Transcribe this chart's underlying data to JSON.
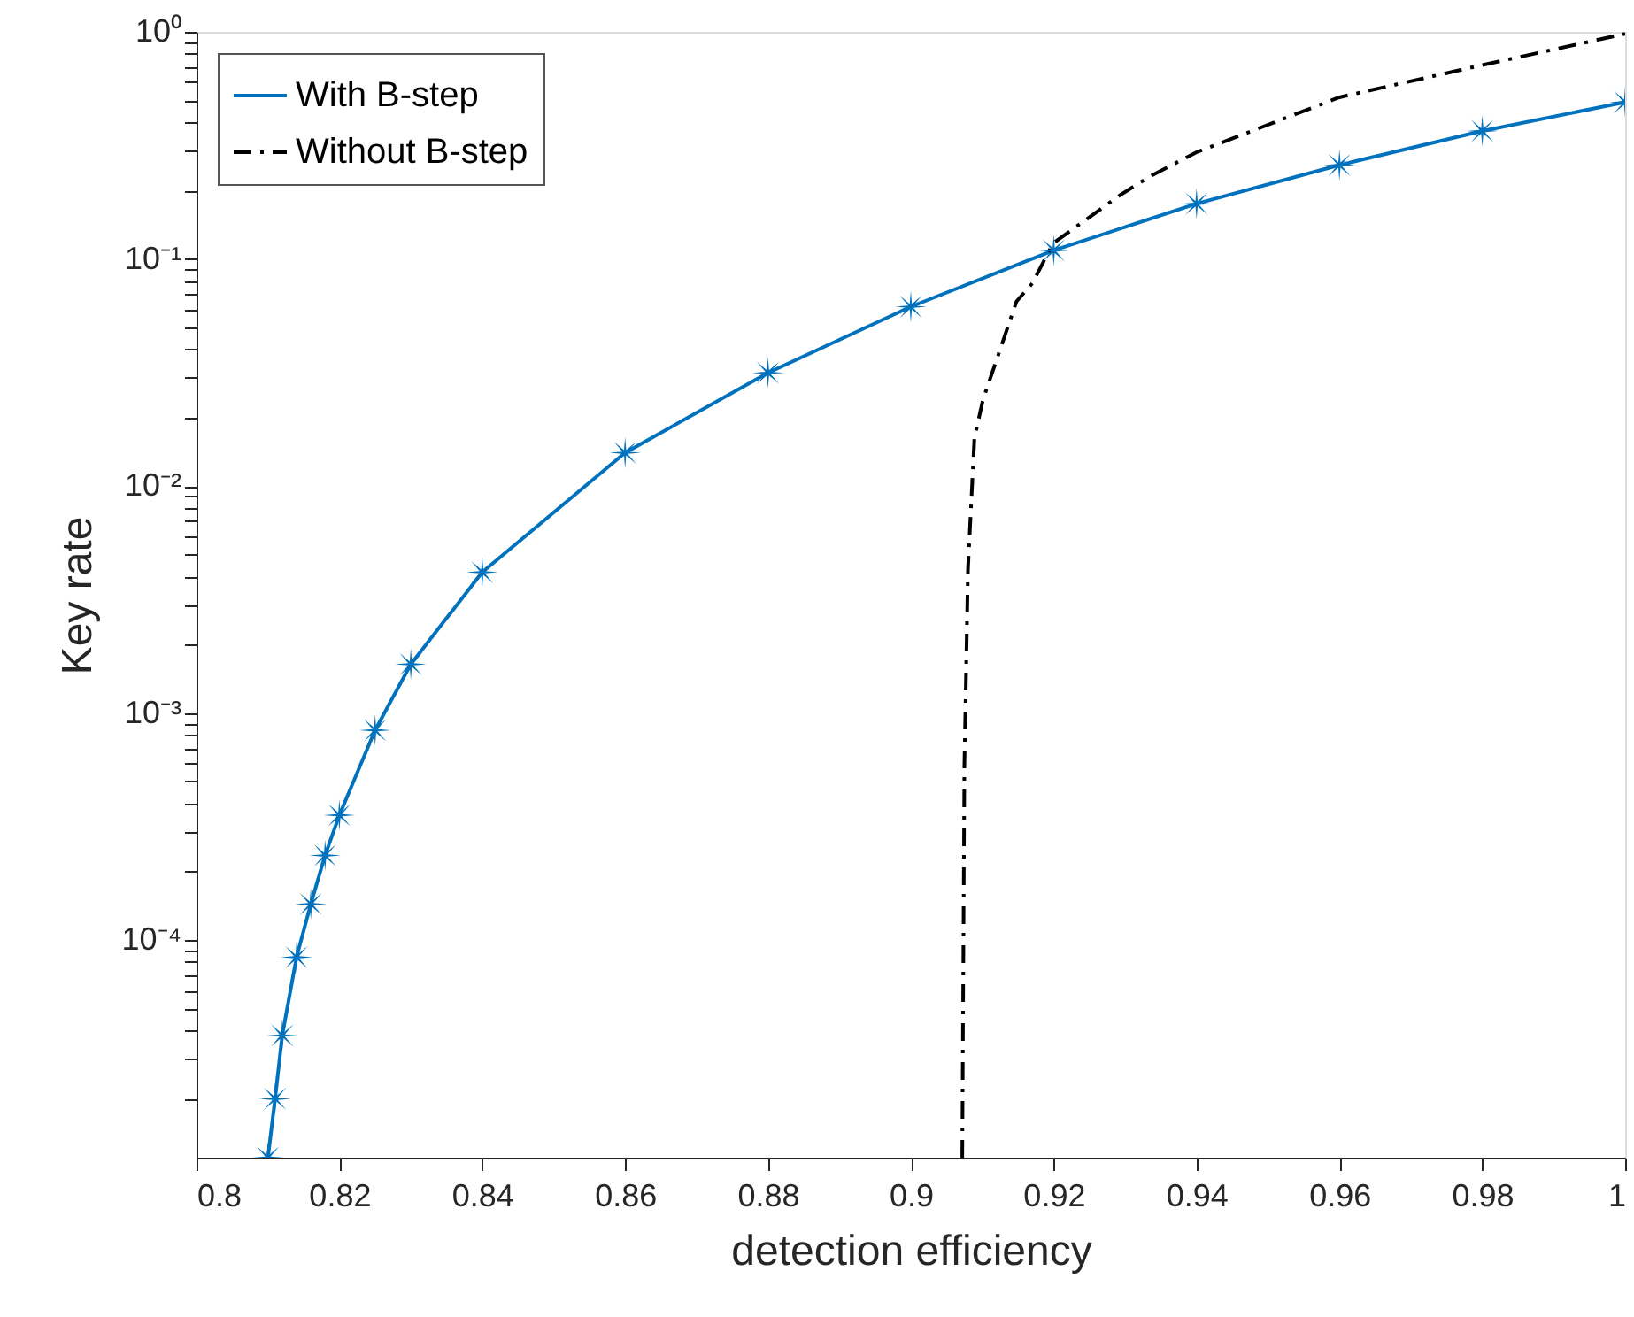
{
  "chart_data": {
    "type": "line",
    "xlabel": "detection efficiency",
    "ylabel": "Key rate",
    "log": "y",
    "grid": false,
    "legend": "top left",
    "xlim": [
      0.8,
      1.0
    ],
    "xticks": [
      0.8,
      0.82,
      0.84,
      0.86,
      0.88,
      0.9,
      0.92,
      0.94,
      0.96,
      0.98,
      {
        "value": 1.0,
        "label": "1"
      }
    ],
    "ylim": [
      1.1e-05,
      1
    ],
    "yticks": [
      {
        "value": 1,
        "label": "10⁰"
      },
      {
        "value": 0.1,
        "label": "10⁻¹"
      },
      {
        "value": 0.01,
        "label": "10⁻²"
      },
      {
        "value": 0.001,
        "label": "10⁻³"
      },
      {
        "value": 0.0001,
        "label": "10⁻⁴"
      },
      {
        "value": 2e-05,
        "label": null
      },
      {
        "value": 3e-05,
        "label": null
      },
      {
        "value": 4e-05,
        "label": null
      },
      {
        "value": 5e-05,
        "label": null
      },
      {
        "value": 6e-05,
        "label": null
      },
      {
        "value": 7e-05,
        "label": null
      },
      {
        "value": 8e-05,
        "label": null
      },
      {
        "value": 9e-05,
        "label": null
      },
      {
        "value": 0.0002,
        "label": null
      },
      {
        "value": 0.0003,
        "label": null
      },
      {
        "value": 0.0004,
        "label": null
      },
      {
        "value": 0.0005,
        "label": null
      },
      {
        "value": 0.0006,
        "label": null
      },
      {
        "value": 0.0007,
        "label": null
      },
      {
        "value": 0.0008,
        "label": null
      },
      {
        "value": 0.0009,
        "label": null
      },
      {
        "value": 0.002,
        "label": null
      },
      {
        "value": 0.003,
        "label": null
      },
      {
        "value": 0.004,
        "label": null
      },
      {
        "value": 0.005,
        "label": null
      },
      {
        "value": 0.006,
        "label": null
      },
      {
        "value": 0.007,
        "label": null
      },
      {
        "value": 0.008,
        "label": null
      },
      {
        "value": 0.009,
        "label": null
      },
      {
        "value": 0.02,
        "label": null
      },
      {
        "value": 0.03,
        "label": null
      },
      {
        "value": 0.04,
        "label": null
      },
      {
        "value": 0.05,
        "label": null
      },
      {
        "value": 0.06,
        "label": null
      },
      {
        "value": 0.07,
        "label": null
      },
      {
        "value": 0.08,
        "label": null
      },
      {
        "value": 0.09,
        "label": null
      },
      {
        "value": 0.2,
        "label": null
      },
      {
        "value": 0.3,
        "label": null
      },
      {
        "value": 0.4,
        "label": null
      },
      {
        "value": 0.5,
        "label": null
      },
      {
        "value": 0.6,
        "label": null
      },
      {
        "value": 0.7,
        "label": null
      },
      {
        "value": 0.8,
        "label": null
      },
      {
        "value": 0.9,
        "label": null
      }
    ],
    "series": [
      {
        "name": "With B-step",
        "color": "#0072bd",
        "marker": "star",
        "line_style": "solid",
        "x": [
          0.81,
          0.811,
          0.812,
          0.814,
          0.816,
          0.818,
          0.82,
          0.825,
          0.83,
          0.84,
          0.86,
          0.88,
          0.9,
          0.92,
          0.94,
          0.96,
          0.98,
          1.0
        ],
        "values": [
          1.1e-05,
          2e-05,
          3.8e-05,
          8.4e-05,
          0.000144,
          0.000236,
          0.000355,
          0.00084,
          0.00164,
          0.00417,
          0.014,
          0.0315,
          0.0616,
          0.109,
          0.175,
          0.259,
          0.366,
          0.49
        ]
      },
      {
        "name": "Without B-step",
        "color": "#000000",
        "marker": "none",
        "line_style": "dashed",
        "x": [
          0.9072,
          0.9075,
          0.908,
          0.9089,
          0.9101,
          0.9148,
          0.917,
          0.9199,
          0.9294,
          0.9336,
          0.94,
          0.96,
          0.98,
          1.0
        ],
        "values": [
          1.1e-05,
          0.00059,
          0.0043,
          0.0162,
          0.024,
          0.065,
          0.078,
          0.117,
          0.192,
          0.232,
          0.295,
          0.515,
          0.714,
          0.98
        ]
      }
    ]
  }
}
